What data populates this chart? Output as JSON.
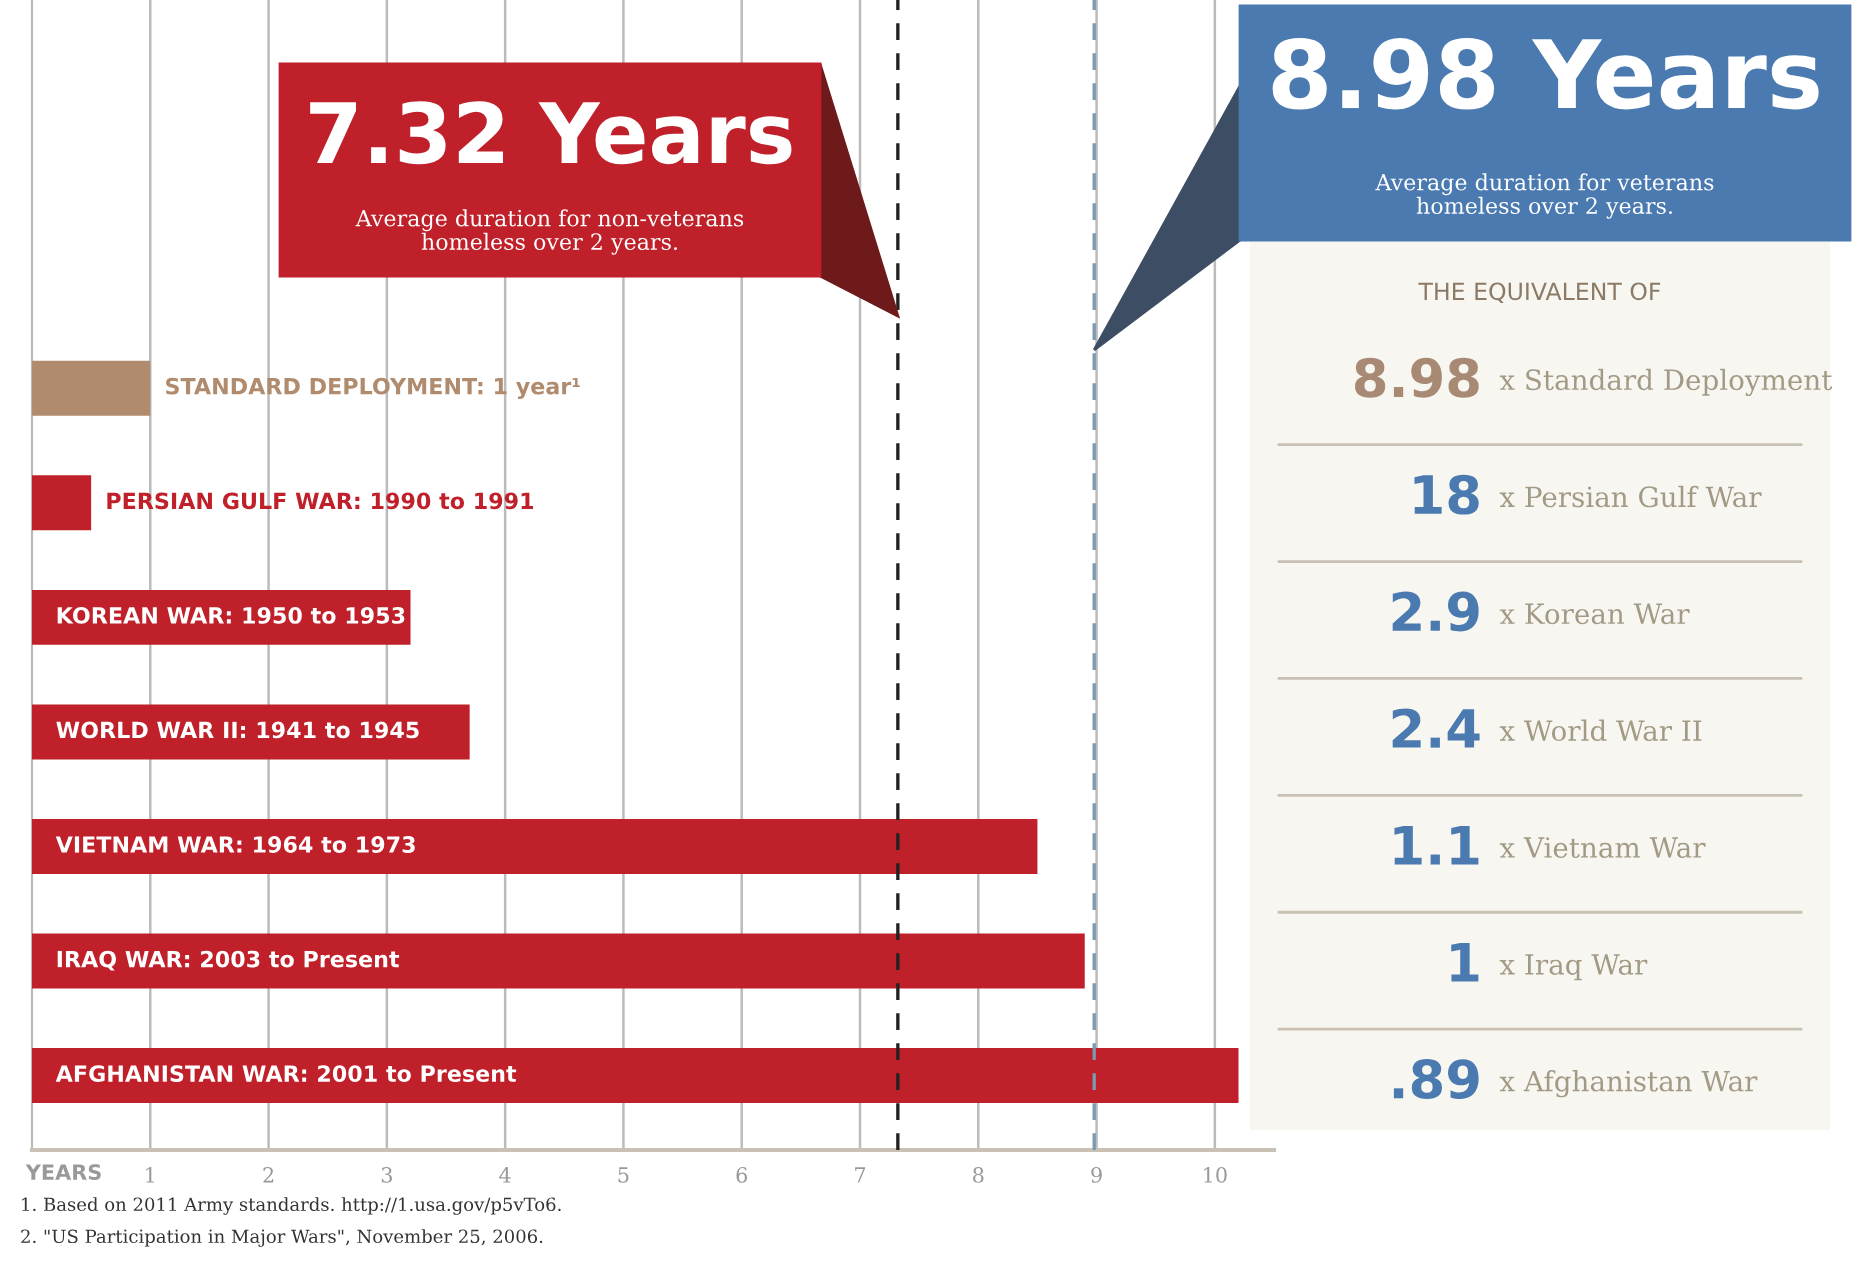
{
  "chart_data": [
    {
      "type": "bar",
      "orientation": "horizontal",
      "xlabel": "YEARS",
      "categories": [
        "STANDARD DEPLOYMENT: 1 year¹",
        "PERSIAN GULF WAR: 1990 to 1991",
        "KOREAN WAR: 1950 to 1953",
        "WORLD WAR II: 1941 to 1945",
        "VIETNAM WAR: 1964 to 1973",
        "IRAQ WAR: 2003 to Present",
        "AFGHANISTAN WAR: 2001 to Present"
      ],
      "values": [
        1,
        0.5,
        3.2,
        3.7,
        8.5,
        8.9,
        10.2
      ],
      "colors": [
        "#b08b6e",
        "#c0202a",
        "#c0202a",
        "#c0202a",
        "#c0202a",
        "#c0202a",
        "#c0202a"
      ],
      "xlim": [
        0,
        10.5
      ],
      "xticks": [
        1,
        2,
        3,
        4,
        5,
        6,
        7,
        8,
        9,
        10
      ],
      "grid": "x",
      "ref_lines": [
        {
          "axis": "x",
          "value": 7.32,
          "label": "7.32 Years",
          "color": "#222222",
          "line_style": "dashed"
        },
        {
          "axis": "x",
          "value": 8.98,
          "label": "8.98 Years",
          "color": "#7a9ab0",
          "line_style": "dashed"
        }
      ],
      "annotations": [
        "Average duration for non-veterans\nhomeless over 2 years.",
        "Average duration for veterans\nhomeless over 2 years.",
        "1. Based on 2011 Army standards. http://1.usa.gov/p5vTo6.",
        "2. \"US Participation in Major Wars\", November 25, 2006."
      ]
    },
    {
      "type": "other",
      "title": "THE EQUIVALENT OF",
      "categories": [
        "x Standard Deployment",
        "x Persian Gulf War",
        "x Korean War",
        "x World War II",
        "x Vietnam War",
        "x Iraq War",
        "x Afghanistan War"
      ],
      "value_labels": [
        "8.98",
        "18",
        "2.9",
        "2.4",
        "1.1",
        "1",
        ".89"
      ],
      "colors": [
        "#a88a74",
        "#4a7ab0",
        "#4a7ab0",
        "#4a7ab0",
        "#4a7ab0",
        "#4a7ab0",
        "#4a7ab0"
      ]
    }
  ]
}
